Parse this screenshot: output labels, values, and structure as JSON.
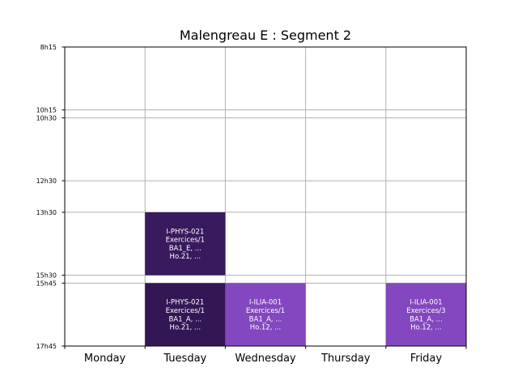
{
  "chart_data": {
    "type": "timetable",
    "title": "Malengreau E : Segment 2",
    "days": [
      "Monday",
      "Tuesday",
      "Wednesday",
      "Thursday",
      "Friday"
    ],
    "time_ticks": [
      "8h15",
      "10h15",
      "10h30",
      "12h30",
      "13h30",
      "15h30",
      "15h45",
      "17h45"
    ],
    "time_range": [
      "8h15",
      "17h45"
    ],
    "grid": true,
    "colors": {
      "dark": "#381a5c",
      "light": "#8347bf",
      "grid": "#b0b0b0"
    },
    "events": [
      {
        "day": "Tuesday",
        "start": "13h30",
        "end": "15h30",
        "color": "#391a5e",
        "lines": [
          "I-PHYS-021",
          "Exercices/1",
          "BA1_E, ...",
          "Ho.21, ..."
        ]
      },
      {
        "day": "Tuesday",
        "start": "15h45",
        "end": "17h45",
        "color": "#331755",
        "lines": [
          "I-PHYS-021",
          "Exercices/1",
          "BA1_A, ...",
          "Ho.21, ..."
        ]
      },
      {
        "day": "Wednesday",
        "start": "15h45",
        "end": "17h45",
        "color": "#8347bf",
        "lines": [
          "I-ILIA-001",
          "Exercices/1",
          "BA1_A, ...",
          "Ho.12, ..."
        ]
      },
      {
        "day": "Friday",
        "start": "15h45",
        "end": "17h45",
        "color": "#8347bf",
        "lines": [
          "I-ILIA-001",
          "Exercices/3",
          "BA1_A, ...",
          "Ho.12, ..."
        ]
      }
    ]
  }
}
